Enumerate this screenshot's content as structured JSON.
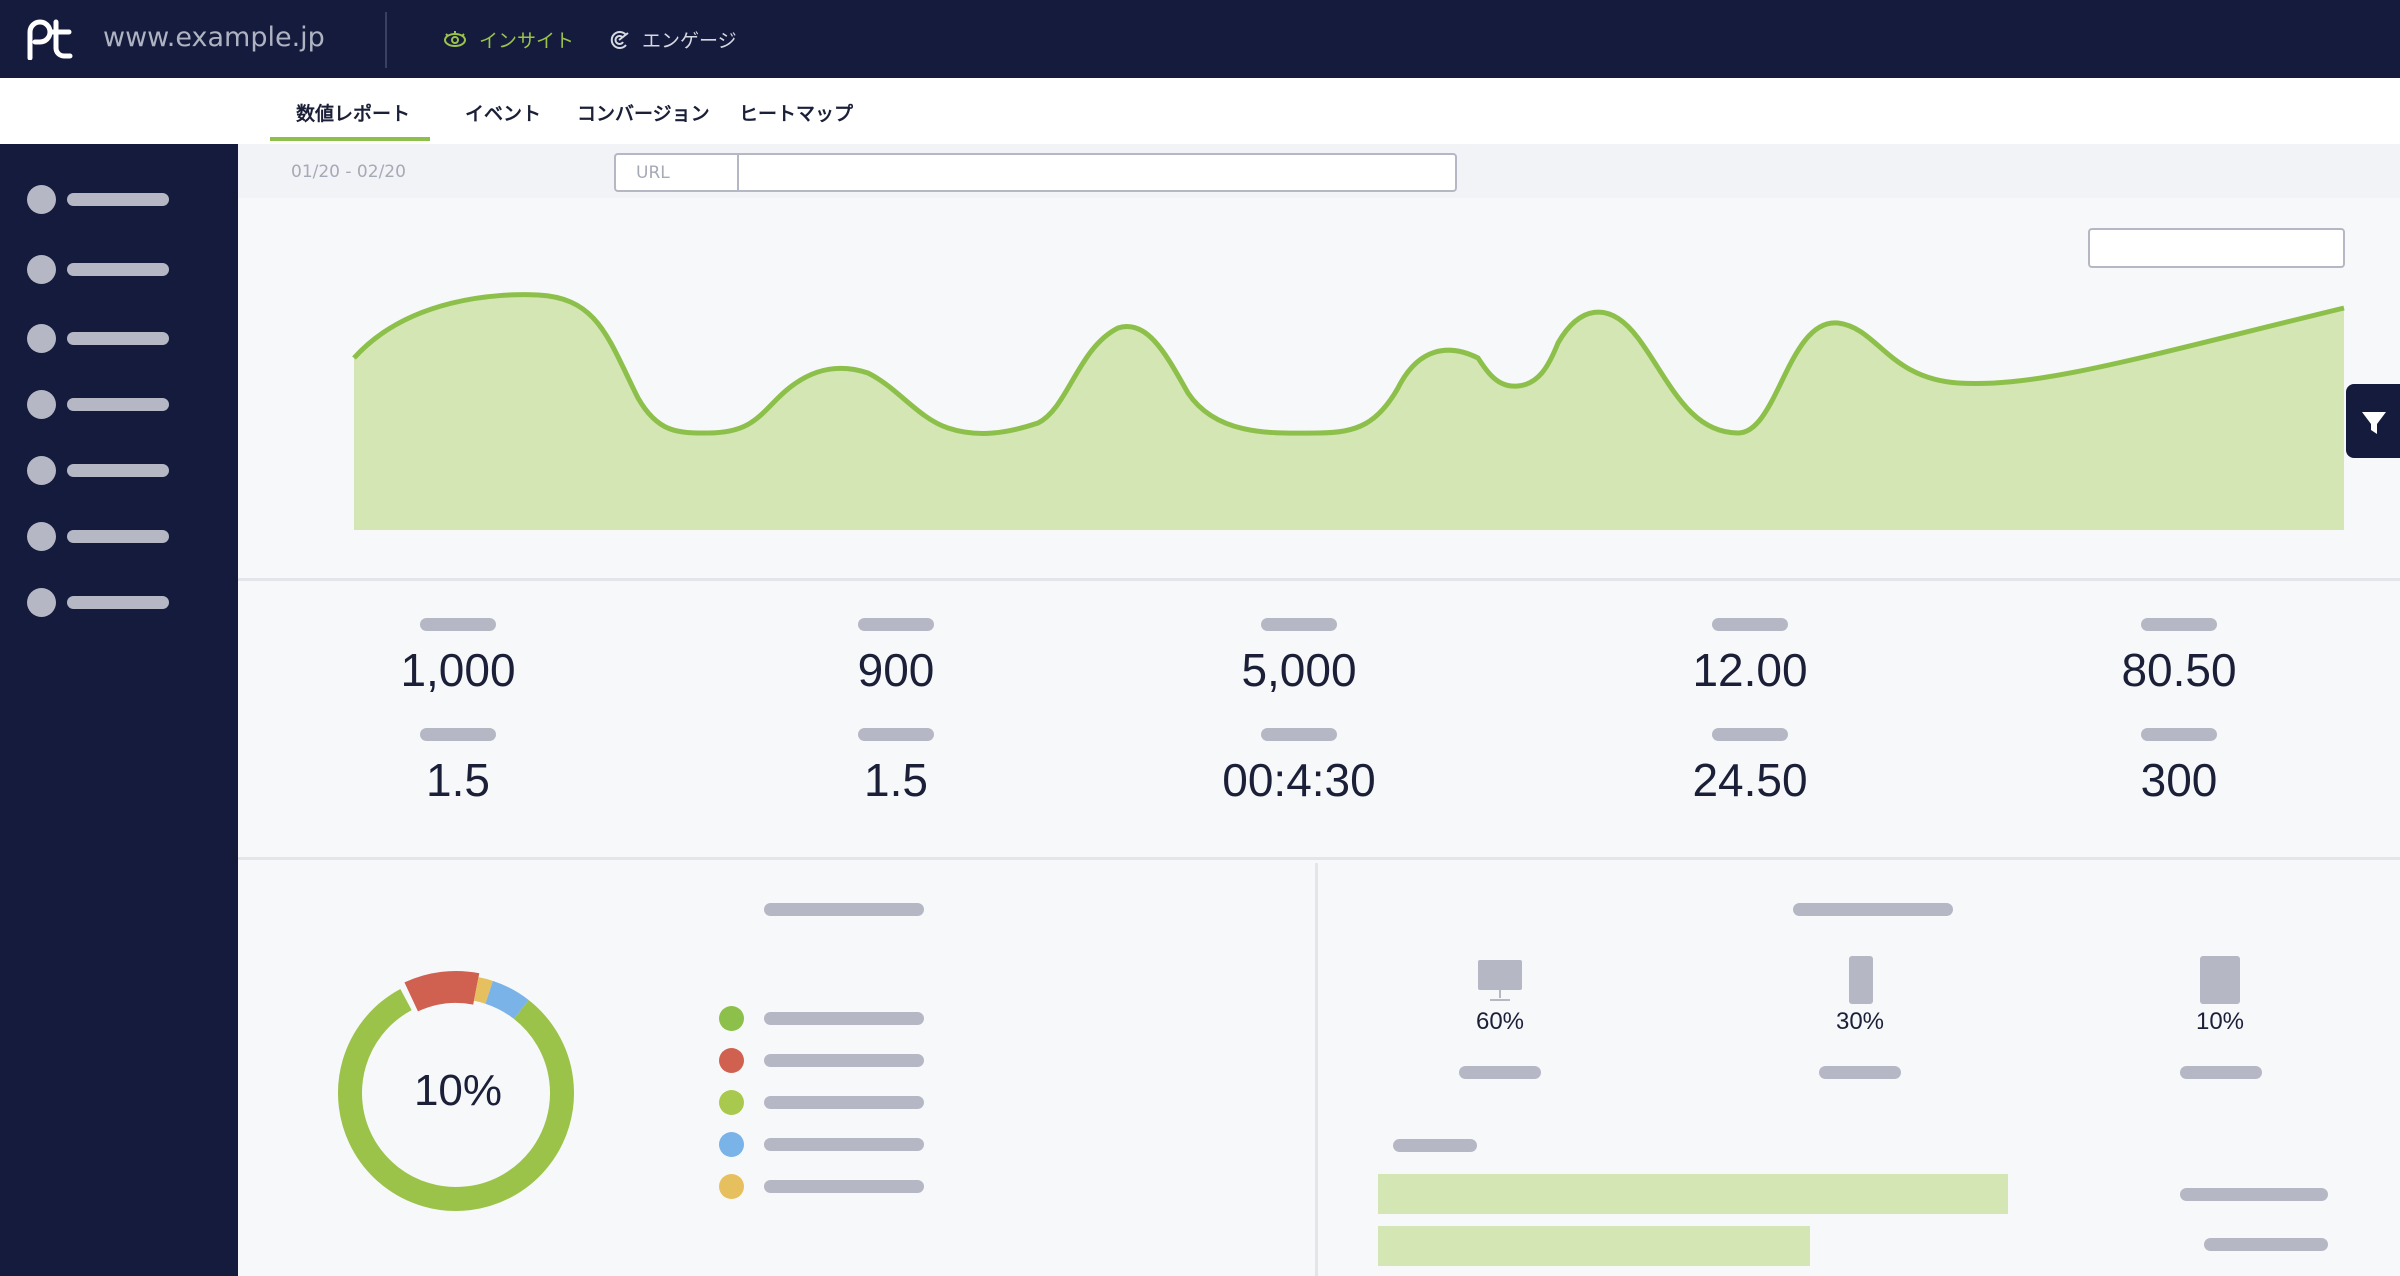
{
  "header": {
    "logo_text": "pt",
    "site": "www.example.jp",
    "nav": [
      {
        "label": "インサイト",
        "active": true,
        "icon": "eye-icon"
      },
      {
        "label": "エンゲージ",
        "active": false,
        "icon": "engage-icon"
      }
    ]
  },
  "tabs": [
    {
      "label": "数値レポート",
      "active": true
    },
    {
      "label": "イベント",
      "active": false
    },
    {
      "label": "コンバージョン",
      "active": false
    },
    {
      "label": "ヒートマップ",
      "active": false
    }
  ],
  "filter": {
    "date_range": "01/20 - 02/20",
    "url_label": "URL",
    "url_value": ""
  },
  "colors": {
    "navy": "#141b3d",
    "accent_green": "#9bc34a",
    "area_fill": "#d5e6b5",
    "donut_red": "#d0604f",
    "donut_blue": "#7ab3e8",
    "donut_yellow": "#e6c05e",
    "placeholder_gray": "#b5b8c4"
  },
  "metrics": [
    {
      "value": "1,000"
    },
    {
      "value": "900"
    },
    {
      "value": "5,000"
    },
    {
      "value": "12.00"
    },
    {
      "value": "80.50"
    },
    {
      "value": "1.5"
    },
    {
      "value": "1.5"
    },
    {
      "value": "00:4:30"
    },
    {
      "value": "24.50"
    },
    {
      "value": "300"
    }
  ],
  "donut": {
    "center_label": "10%",
    "segments": [
      {
        "color": "#9bc34a",
        "fraction": 0.825
      },
      {
        "color": "#d0604f",
        "fraction": 0.1
      },
      {
        "color": "#e6c05e",
        "fraction": 0.02
      },
      {
        "color": "#7ab3e8",
        "fraction": 0.055
      }
    ],
    "legend_colors": [
      "#8dc04a",
      "#d0604f",
      "#a9c94e",
      "#7ab3e8",
      "#e6c05e"
    ]
  },
  "devices": [
    {
      "icon": "desktop-icon",
      "pct": "60%"
    },
    {
      "icon": "smartphone-icon",
      "pct": "30%"
    },
    {
      "icon": "tablet-icon",
      "pct": "10%"
    }
  ],
  "bars": [
    {
      "fraction": 1.0
    },
    {
      "fraction": 0.685
    }
  ]
}
